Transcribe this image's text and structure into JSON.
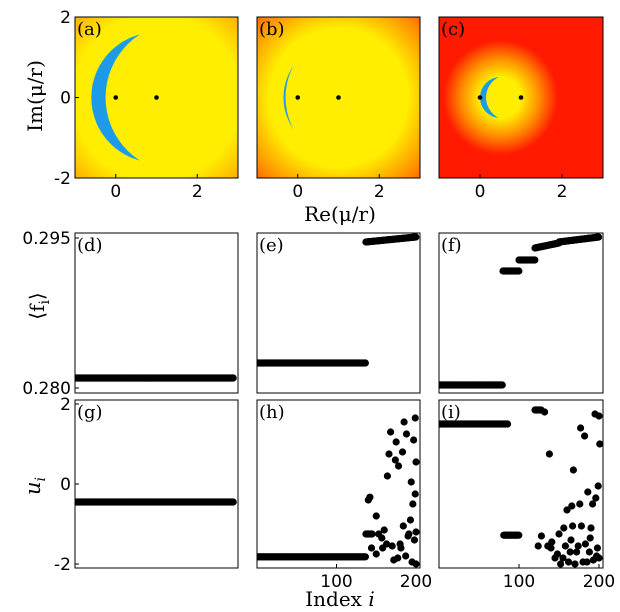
{
  "figure": {
    "top_xlabel": "Re(μ/r)",
    "top_ylabel": "Im(μ/r)",
    "mid_ylabel": "⟨f",
    "mid_ylabel_sub": "i",
    "mid_ylabel_end": "⟩",
    "bot_ylabel": "u",
    "bot_ylabel_sub": "i",
    "bot_xlabel": "Index ",
    "bot_xlabel_var": "i"
  },
  "colors": {
    "blue": "#1e9be8",
    "yellow": "#ffee00",
    "orange": "#ff8c00",
    "red": "#ff1a00",
    "marker": "#000000"
  },
  "chart_data": [
    {
      "type": "heatmap",
      "label": "(a)",
      "xlim": [
        -1,
        3
      ],
      "ylim": [
        -2,
        2
      ],
      "xticks": [
        "0",
        "2"
      ],
      "yticks": [
        "2",
        "0",
        "-2"
      ],
      "poles": [
        [
          0,
          0
        ],
        [
          1,
          0
        ]
      ],
      "region": {
        "center": [
          1,
          0
        ],
        "radius": 1.6,
        "yellow_radius": 2.05,
        "glow_radius": 4.4,
        "boundary_center": [
          1.6,
          0
        ],
        "boundary_radius": 1.85
      }
    },
    {
      "type": "heatmap",
      "label": "(b)",
      "xlim": [
        -1,
        3
      ],
      "ylim": [
        -2,
        2
      ],
      "xticks": [
        "0",
        "2"
      ],
      "yticks": [],
      "poles": [
        [
          0,
          0
        ],
        [
          1,
          0
        ]
      ],
      "region": {
        "center": [
          1,
          0
        ],
        "radius": 1.35,
        "yellow_radius": 1.7,
        "glow_radius": 3.4,
        "boundary_center": [
          1.35,
          0
        ],
        "boundary_radius": 1.65
      }
    },
    {
      "type": "heatmap",
      "label": "(c)",
      "xlim": [
        -1,
        3
      ],
      "ylim": [
        -2,
        2
      ],
      "xticks": [
        "0",
        "2"
      ],
      "yticks": [],
      "poles": [
        [
          0,
          0
        ],
        [
          1,
          0
        ]
      ],
      "region": {
        "center": [
          0.5,
          0
        ],
        "radius": 0.5,
        "yellow_radius": 0.5,
        "glow_radius": 1.4,
        "boundary_center": [
          0.7,
          0
        ],
        "boundary_radius": 0.55
      }
    },
    {
      "type": "scatter",
      "label": "(d)",
      "xlim": [
        0,
        205
      ],
      "ylim": [
        0.2795,
        0.2955
      ],
      "xticks": [],
      "yticks": [
        "0.295",
        "0.280"
      ],
      "segments": [
        {
          "from": 1,
          "to": 200,
          "y": 0.281
        }
      ],
      "points": []
    },
    {
      "type": "scatter",
      "label": "(e)",
      "xlim": [
        0,
        205
      ],
      "ylim": [
        0.2795,
        0.2955
      ],
      "xticks": [],
      "yticks": [],
      "segments": [
        {
          "from": 1,
          "to": 137,
          "y": 0.2825
        },
        {
          "from": 137,
          "to": 200,
          "y0": 0.2946,
          "y1": 0.2951
        }
      ],
      "points": []
    },
    {
      "type": "scatter",
      "label": "(f)",
      "xlim": [
        0,
        205
      ],
      "ylim": [
        0.2795,
        0.2955
      ],
      "xticks": [],
      "yticks": [],
      "segments": [
        {
          "from": 1,
          "to": 80,
          "y": 0.2803
        },
        {
          "from": 80,
          "to": 100,
          "y": 0.2917
        },
        {
          "from": 100,
          "to": 120,
          "y": 0.2928
        },
        {
          "from": 120,
          "to": 150,
          "y0": 0.294,
          "y1": 0.2945
        },
        {
          "from": 150,
          "to": 200,
          "y0": 0.2946,
          "y1": 0.2951
        }
      ],
      "points": []
    },
    {
      "type": "scatter",
      "label": "(g)",
      "xlim": [
        0,
        205
      ],
      "ylim": [
        -2.1,
        2.1
      ],
      "xticks": [],
      "yticks": [
        "2",
        "0",
        "-2"
      ],
      "segments": [
        {
          "from": 1,
          "to": 200,
          "y": -0.45
        }
      ],
      "points": []
    },
    {
      "type": "scatter",
      "label": "(h)",
      "xlim": [
        0,
        205
      ],
      "ylim": [
        -2.1,
        2.1
      ],
      "xticks": [
        "100",
        "200"
      ],
      "yticks": [],
      "segments": [
        {
          "from": 1,
          "to": 137,
          "y": -1.82
        },
        {
          "from": 137,
          "to": 145,
          "y": -1.25
        }
      ],
      "points": [
        [
          140,
          -0.4
        ],
        [
          142,
          -0.33
        ],
        [
          150,
          -0.8
        ],
        [
          144,
          -1.6
        ],
        [
          150,
          -1.75
        ],
        [
          153,
          -1.25
        ],
        [
          157,
          -1.35
        ],
        [
          158,
          -1.6
        ],
        [
          160,
          -1.15
        ],
        [
          163,
          -1.5
        ],
        [
          164,
          0.2
        ],
        [
          166,
          0.75
        ],
        [
          168,
          1.3
        ],
        [
          170,
          -1.55
        ],
        [
          172,
          -1.9
        ],
        [
          174,
          0.6
        ],
        [
          175,
          1.05
        ],
        [
          177,
          -1.85
        ],
        [
          178,
          0.45
        ],
        [
          180,
          -1.5
        ],
        [
          181,
          -1.6
        ],
        [
          183,
          0.8
        ],
        [
          184,
          -1.05
        ],
        [
          185,
          1.55
        ],
        [
          187,
          -1.8
        ],
        [
          188,
          1.25
        ],
        [
          190,
          -1.3
        ],
        [
          191,
          -1.25
        ],
        [
          193,
          -0.9
        ],
        [
          194,
          0.05
        ],
        [
          195,
          -1.95
        ],
        [
          196,
          -0.5
        ],
        [
          197,
          1.1
        ],
        [
          198,
          -1.4
        ],
        [
          199,
          1.65
        ],
        [
          200,
          0.55
        ],
        [
          200,
          -1.2
        ],
        [
          200,
          -2.0
        ],
        [
          199,
          -0.25
        ]
      ]
    },
    {
      "type": "scatter",
      "label": "(i)",
      "xlim": [
        0,
        205
      ],
      "ylim": [
        -2.1,
        2.1
      ],
      "xticks": [
        "100",
        "200"
      ],
      "yticks": [],
      "segments": [
        {
          "from": 1,
          "to": 86,
          "y": 1.5
        },
        {
          "from": 81,
          "to": 100,
          "y": -1.28
        },
        {
          "from": 120,
          "to": 128,
          "y": 1.85
        }
      ],
      "points": [
        [
          132,
          1.8
        ],
        [
          138,
          0.75
        ],
        [
          124,
          -1.55
        ],
        [
          128,
          -1.3
        ],
        [
          136,
          -1.55
        ],
        [
          140,
          -1.6
        ],
        [
          141,
          -1.45
        ],
        [
          145,
          -1.85
        ],
        [
          148,
          -1.75
        ],
        [
          150,
          -1.25
        ],
        [
          152,
          -2.0
        ],
        [
          155,
          -1.85
        ],
        [
          156,
          -1.1
        ],
        [
          158,
          -1.55
        ],
        [
          160,
          -0.65
        ],
        [
          162,
          -1.95
        ],
        [
          164,
          -1.7
        ],
        [
          165,
          -1.4
        ],
        [
          166,
          -0.55
        ],
        [
          167,
          -1.05
        ],
        [
          168,
          0.35
        ],
        [
          170,
          -2.0
        ],
        [
          172,
          -1.7
        ],
        [
          174,
          -1.55
        ],
        [
          176,
          -0.5
        ],
        [
          177,
          1.4
        ],
        [
          178,
          -1.05
        ],
        [
          180,
          -1.95
        ],
        [
          182,
          1.2
        ],
        [
          183,
          -1.5
        ],
        [
          185,
          -1.95
        ],
        [
          186,
          -0.2
        ],
        [
          188,
          -1.7
        ],
        [
          189,
          -1.35
        ],
        [
          190,
          -1.1
        ],
        [
          192,
          -0.5
        ],
        [
          193,
          -1.9
        ],
        [
          195,
          1.75
        ],
        [
          196,
          -0.35
        ],
        [
          198,
          -1.6
        ],
        [
          199,
          -0.05
        ],
        [
          200,
          1.7
        ],
        [
          200,
          -1.85
        ],
        [
          201,
          1.0
        ],
        [
          197,
          -1.8
        ]
      ]
    }
  ]
}
